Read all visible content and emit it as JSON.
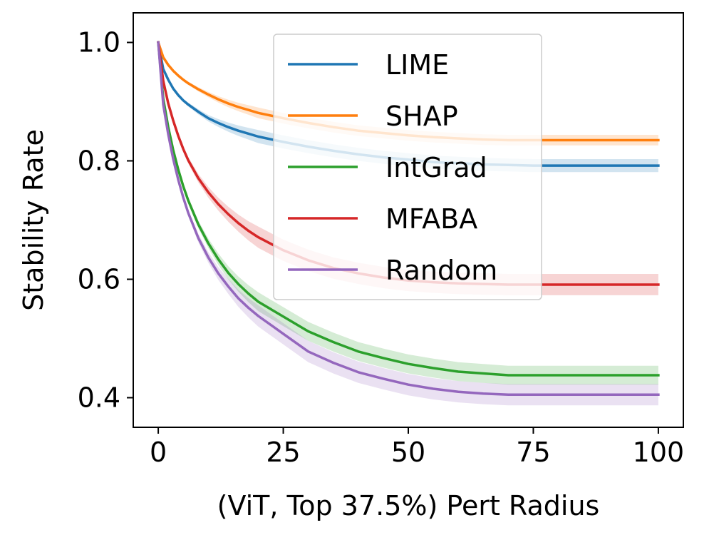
{
  "chart_data": {
    "type": "line",
    "title": "",
    "xlabel": "(ViT, Top 37.5%) Pert Radius",
    "ylabel": "Stability Rate",
    "xlim": [
      -5,
      105
    ],
    "ylim": [
      0.35,
      1.05
    ],
    "xticks": [
      0,
      25,
      50,
      75,
      100
    ],
    "xtick_labels": [
      "0",
      "25",
      "50",
      "75",
      "100"
    ],
    "yticks": [
      0.4,
      0.6,
      0.8,
      1.0
    ],
    "ytick_labels": [
      "0.4",
      "0.6",
      "0.8",
      "1.0"
    ],
    "grid": false,
    "legend_position": "upper center",
    "x": [
      0,
      1,
      2,
      3,
      4,
      5,
      6,
      8,
      10,
      12,
      14,
      16,
      18,
      20,
      25,
      30,
      35,
      40,
      45,
      50,
      55,
      60,
      65,
      70,
      75,
      80,
      85,
      90,
      95,
      100
    ],
    "series": [
      {
        "name": "LIME",
        "color": "#1f77b4",
        "values": [
          1.0,
          0.955,
          0.937,
          0.922,
          0.911,
          0.902,
          0.895,
          0.883,
          0.872,
          0.864,
          0.857,
          0.851,
          0.846,
          0.841,
          0.832,
          0.824,
          0.817,
          0.811,
          0.806,
          0.802,
          0.798,
          0.796,
          0.794,
          0.793,
          0.792,
          0.792,
          0.792,
          0.792,
          0.792,
          0.792
        ],
        "band": 0.011
      },
      {
        "name": "SHAP",
        "color": "#ff7f0e",
        "values": [
          1.0,
          0.975,
          0.962,
          0.952,
          0.944,
          0.937,
          0.931,
          0.921,
          0.912,
          0.904,
          0.897,
          0.891,
          0.886,
          0.881,
          0.872,
          0.864,
          0.857,
          0.851,
          0.847,
          0.843,
          0.84,
          0.838,
          0.836,
          0.835,
          0.835,
          0.835,
          0.835,
          0.835,
          0.835,
          0.835
        ],
        "band": 0.009
      },
      {
        "name": "IntGrad",
        "color": "#2ca02c",
        "values": [
          1.0,
          0.905,
          0.857,
          0.818,
          0.785,
          0.757,
          0.733,
          0.693,
          0.661,
          0.634,
          0.611,
          0.592,
          0.576,
          0.562,
          0.537,
          0.512,
          0.494,
          0.478,
          0.467,
          0.457,
          0.45,
          0.444,
          0.441,
          0.438,
          0.438,
          0.438,
          0.438,
          0.438,
          0.438,
          0.438
        ],
        "band": 0.016
      },
      {
        "name": "MFABA",
        "color": "#d62728",
        "values": [
          1.0,
          0.935,
          0.897,
          0.868,
          0.842,
          0.82,
          0.801,
          0.771,
          0.747,
          0.727,
          0.71,
          0.695,
          0.682,
          0.671,
          0.649,
          0.632,
          0.619,
          0.61,
          0.603,
          0.598,
          0.595,
          0.593,
          0.592,
          0.591,
          0.591,
          0.591,
          0.591,
          0.591,
          0.591,
          0.591
        ],
        "band": 0.018
      },
      {
        "name": "Random",
        "color": "#9467bd",
        "values": [
          1.0,
          0.895,
          0.845,
          0.803,
          0.768,
          0.738,
          0.712,
          0.67,
          0.637,
          0.61,
          0.588,
          0.568,
          0.552,
          0.538,
          0.508,
          0.478,
          0.459,
          0.443,
          0.432,
          0.422,
          0.415,
          0.41,
          0.407,
          0.405,
          0.405,
          0.405,
          0.405,
          0.405,
          0.405,
          0.405
        ],
        "band": 0.018
      }
    ]
  }
}
